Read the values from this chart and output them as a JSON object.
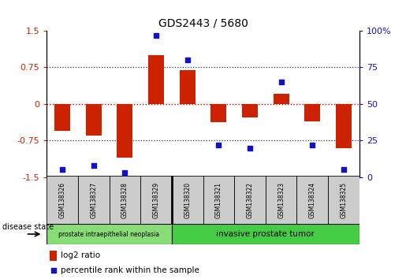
{
  "title": "GDS2443 / 5680",
  "samples": [
    "GSM138326",
    "GSM138327",
    "GSM138328",
    "GSM138329",
    "GSM138320",
    "GSM138321",
    "GSM138322",
    "GSM138323",
    "GSM138324",
    "GSM138325"
  ],
  "log2_ratio": [
    -0.55,
    -0.65,
    -1.1,
    1.0,
    0.7,
    -0.38,
    -0.28,
    0.2,
    -0.35,
    -0.9
  ],
  "percentile_rank": [
    5,
    8,
    3,
    97,
    80,
    22,
    20,
    65,
    22,
    5
  ],
  "ylim_left": [
    -1.5,
    1.5
  ],
  "ylim_right": [
    0,
    100
  ],
  "yticks_left": [
    -1.5,
    -0.75,
    0,
    0.75,
    1.5
  ],
  "yticks_right": [
    0,
    25,
    50,
    75,
    100
  ],
  "bar_color": "#cc2200",
  "dot_color": "#1111cc",
  "zero_line_color": "#cc0000",
  "dotted_line_color": "#333333",
  "group1_label": "prostate intraepithelial neoplasia",
  "group2_label": "invasive prostate tumor",
  "group1_color": "#88dd77",
  "group2_color": "#44cc44",
  "group1_samples": 4,
  "group2_samples": 6,
  "disease_state_label": "disease state",
  "legend_bar_label": "log2 ratio",
  "legend_dot_label": "percentile rank within the sample",
  "background_color": "#ffffff",
  "plot_bg_color": "#ffffff",
  "box_color": "#cccccc",
  "bar_width": 0.5
}
